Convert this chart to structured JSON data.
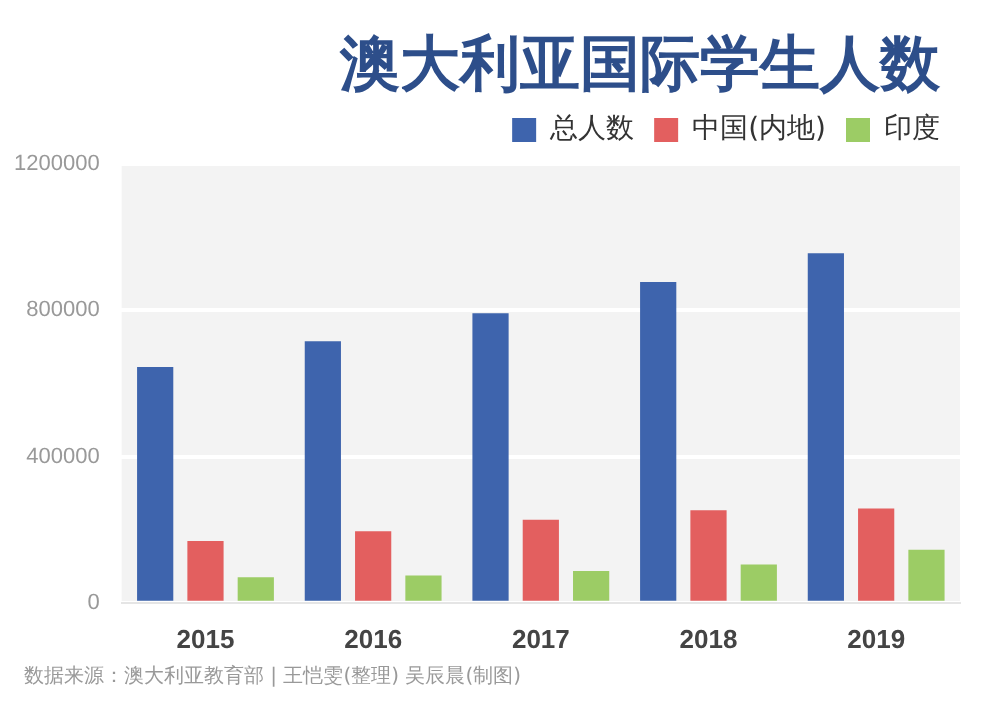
{
  "chart_data": {
    "type": "bar",
    "title": "澳大利亚国际学生人数",
    "categories": [
      "2015",
      "2016",
      "2017",
      "2018",
      "2019"
    ],
    "series": [
      {
        "name": "总人数",
        "color": "#3e64ad",
        "values": [
          645000,
          715000,
          792000,
          877000,
          956000
        ]
      },
      {
        "name": "中国(内地)",
        "color": "#e35f5f",
        "values": [
          169000,
          196000,
          227000,
          253000,
          258000
        ]
      },
      {
        "name": "印度",
        "color": "#9ccc65",
        "values": [
          70000,
          75000,
          87000,
          105000,
          145000
        ]
      }
    ],
    "ylim": [
      0,
      1200000
    ],
    "yticks": [
      0,
      400000,
      800000,
      1200000
    ],
    "grid": "y",
    "legend": "top right",
    "annotations": [
      "数据来源：澳大利亚教育部 | 王恺雯(整理) 吴辰晨(制图)"
    ]
  }
}
